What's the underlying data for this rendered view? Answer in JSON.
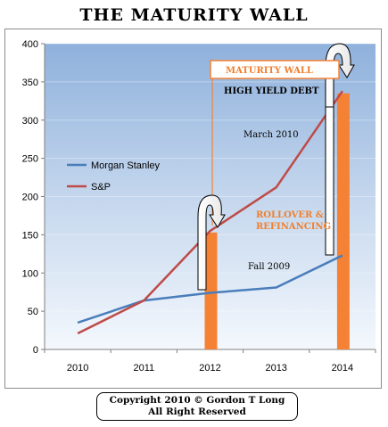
{
  "chart_data": {
    "type": "line",
    "title": "THE MATURITY WALL",
    "categories": [
      "2010",
      "2011",
      "2012",
      "2013",
      "2014"
    ],
    "ylim": [
      0,
      400
    ],
    "yticks": [
      0,
      50,
      100,
      150,
      200,
      250,
      300,
      350,
      400
    ],
    "series": [
      {
        "name": "Morgan Stanley",
        "color": "#4a7ebb",
        "values": [
          35,
          64,
          74,
          81,
          123
        ]
      },
      {
        "name": "S&P",
        "color": "#be4b48",
        "values": [
          21,
          64,
          155,
          212,
          338
        ]
      }
    ],
    "bars": [
      {
        "category": "2012",
        "value": 153,
        "color": "#f58234"
      },
      {
        "category": "2014",
        "value": 335,
        "color": "#f58234"
      }
    ],
    "annotations": {
      "maturity_wall": "MATURITY WALL",
      "high_yield_debt": "HIGH YIELD DEBT",
      "march_2010": "March 2010",
      "rollover_line1": "ROLLOVER &",
      "rollover_line2": "REFINANCING",
      "fall_2009": "Fall 2009"
    },
    "legend_position": "left"
  },
  "copyright": {
    "line1": "Copyright 2010 © Gordon T Long",
    "line2": "All Right Reserved"
  }
}
